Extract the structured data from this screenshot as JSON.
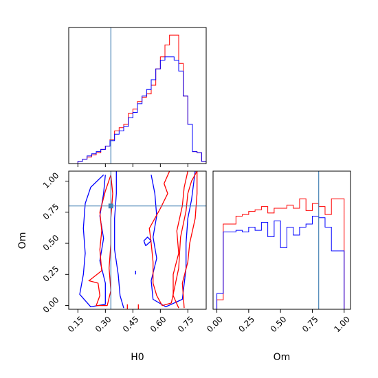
{
  "chart_data": [
    {
      "type": "histogram",
      "panel": "H0-marginal",
      "xlim": [
        0.1,
        0.85
      ],
      "bins": [
        0.1,
        0.125,
        0.15,
        0.175,
        0.2,
        0.225,
        0.25,
        0.275,
        0.3,
        0.325,
        0.35,
        0.375,
        0.4,
        0.425,
        0.45,
        0.475,
        0.5,
        0.525,
        0.55,
        0.575,
        0.6,
        0.625,
        0.65,
        0.675,
        0.7,
        0.725,
        0.75,
        0.775,
        0.8,
        0.825,
        0.85
      ],
      "series": [
        {
          "color": "#ff0000",
          "values": [
            0,
            0,
            2,
            4,
            6,
            8,
            10,
            13,
            16,
            22,
            30,
            33,
            36,
            46,
            50,
            57,
            61,
            64,
            72,
            87,
            98,
            109,
            118,
            118,
            92,
            62,
            36,
            11,
            10,
            2
          ]
        },
        {
          "color": "#0000ff",
          "values": [
            0,
            0,
            2,
            4,
            7,
            9,
            11,
            13,
            16,
            21,
            27,
            30,
            34,
            42,
            47,
            55,
            62,
            68,
            77,
            87,
            95,
            98,
            98,
            95,
            85,
            62,
            36,
            11,
            10,
            2
          ]
        }
      ],
      "truth": 0.33,
      "truth_color": "#4682b4"
    },
    {
      "type": "histogram",
      "panel": "Om-marginal",
      "xlim": [
        -0.03,
        1.05
      ],
      "bins": [
        0.0,
        0.05,
        0.1,
        0.15,
        0.2,
        0.25,
        0.3,
        0.35,
        0.4,
        0.45,
        0.5,
        0.55,
        0.6,
        0.65,
        0.7,
        0.75,
        0.8,
        0.85,
        0.9,
        0.95,
        1.0,
        1.05
      ],
      "series": [
        {
          "color": "#ff0000",
          "values": [
            12,
            108,
            108,
            118,
            120,
            124,
            126,
            130,
            122,
            128,
            128,
            132,
            128,
            140,
            125,
            134,
            130,
            120,
            140,
            140,
            0,
            0
          ]
        },
        {
          "color": "#0000ff",
          "values": [
            20,
            98,
            98,
            100,
            98,
            104,
            100,
            110,
            92,
            112,
            78,
            104,
            94,
            104,
            108,
            118,
            116,
            104,
            74,
            74,
            0,
            0
          ]
        }
      ],
      "truth": 0.8,
      "truth_color": "#4682b4"
    },
    {
      "type": "contour",
      "panel": "H0-Om-joint",
      "xlabel": "H0",
      "ylabel": "Om",
      "xlim": [
        0.1,
        0.85
      ],
      "ylim": [
        -0.03,
        1.08
      ],
      "xticks": [
        "0.15",
        "0.30",
        "0.45",
        "0.60",
        "0.75"
      ],
      "yticks": [
        "0.00",
        "0.25",
        "0.50",
        "0.75",
        "1.00"
      ],
      "truth": {
        "x": 0.33,
        "y": 0.8
      },
      "truth_color": "#4682b4",
      "series": [
        {
          "color": "#0000ff",
          "contours": [
            [
              [
                0.29,
                1.05
              ],
              [
                0.22,
                0.95
              ],
              [
                0.19,
                0.82
              ],
              [
                0.18,
                0.62
              ],
              [
                0.19,
                0.42
              ],
              [
                0.18,
                0.25
              ],
              [
                0.16,
                0.09
              ],
              [
                0.22,
                -0.01
              ],
              [
                0.3,
                0.01
              ],
              [
                0.3,
                0.18
              ],
              [
                0.27,
                0.36
              ],
              [
                0.29,
                0.54
              ],
              [
                0.27,
                0.72
              ],
              [
                0.29,
                0.9
              ],
              [
                0.3,
                1.05
              ]
            ],
            [
              [
                0.36,
                1.08
              ],
              [
                0.36,
                0.9
              ],
              [
                0.35,
                0.7
              ],
              [
                0.35,
                0.45
              ],
              [
                0.37,
                0.25
              ],
              [
                0.38,
                0.08
              ],
              [
                0.4,
                -0.02
              ]
            ],
            [
              [
                0.55,
                1.05
              ],
              [
                0.57,
                0.9
              ],
              [
                0.58,
                0.72
              ],
              [
                0.56,
                0.55
              ],
              [
                0.58,
                0.38
              ],
              [
                0.55,
                0.2
              ],
              [
                0.56,
                0.05
              ],
              [
                0.63,
                -0.01
              ],
              [
                0.72,
                0.05
              ],
              [
                0.74,
                0.3
              ],
              [
                0.74,
                0.5
              ],
              [
                0.75,
                0.7
              ],
              [
                0.77,
                0.85
              ],
              [
                0.79,
                1.08
              ]
            ],
            [
              [
                0.52,
                0.48
              ],
              [
                0.51,
                0.52
              ],
              [
                0.53,
                0.55
              ],
              [
                0.55,
                0.52
              ],
              [
                0.52,
                0.48
              ]
            ],
            [
              [
                0.465,
                0.25
              ],
              [
                0.465,
                0.28
              ]
            ]
          ]
        },
        {
          "color": "#ff0000",
          "contours": [
            [
              [
                0.33,
                1.05
              ],
              [
                0.3,
                0.92
              ],
              [
                0.27,
                0.75
              ],
              [
                0.28,
                0.6
              ],
              [
                0.27,
                0.45
              ],
              [
                0.28,
                0.28
              ],
              [
                0.22,
                0.21
              ],
              [
                0.21,
                0.2
              ],
              [
                0.26,
                0.18
              ],
              [
                0.27,
                0.08
              ],
              [
                0.25,
                0.0
              ],
              [
                0.31,
                0.0
              ],
              [
                0.33,
                0.12
              ],
              [
                0.32,
                0.3
              ],
              [
                0.33,
                0.5
              ],
              [
                0.33,
                0.7
              ],
              [
                0.34,
                0.9
              ],
              [
                0.33,
                1.05
              ]
            ],
            [
              [
                0.65,
                1.08
              ],
              [
                0.62,
                0.98
              ],
              [
                0.64,
                0.9
              ],
              [
                0.6,
                0.78
              ],
              [
                0.57,
                0.7
              ],
              [
                0.54,
                0.62
              ],
              [
                0.55,
                0.5
              ],
              [
                0.56,
                0.35
              ],
              [
                0.56,
                0.18
              ],
              [
                0.58,
                0.08
              ],
              [
                0.61,
                0.0
              ],
              [
                0.66,
                0.02
              ],
              [
                0.7,
                0.3
              ],
              [
                0.71,
                0.55
              ],
              [
                0.74,
                0.76
              ],
              [
                0.75,
                0.9
              ],
              [
                0.77,
                1.0
              ],
              [
                0.8,
                1.08
              ]
            ],
            [
              [
                0.75,
                1.08
              ],
              [
                0.73,
                0.95
              ],
              [
                0.72,
                0.8
              ],
              [
                0.69,
                0.6
              ],
              [
                0.7,
                0.42
              ],
              [
                0.67,
                0.25
              ],
              [
                0.67,
                0.08
              ],
              [
                0.7,
                -0.02
              ]
            ],
            [
              [
                0.8,
                1.08
              ],
              [
                0.8,
                0.9
              ],
              [
                0.79,
                0.7
              ],
              [
                0.76,
                0.5
              ],
              [
                0.75,
                0.35
              ],
              [
                0.72,
                0.18
              ],
              [
                0.73,
                -0.02
              ]
            ],
            [
              [
                0.42,
                0.01
              ],
              [
                0.42,
                -0.03
              ]
            ],
            [
              [
                0.48,
                0.01
              ],
              [
                0.48,
                -0.03
              ]
            ]
          ]
        }
      ]
    }
  ],
  "axes": {
    "h0": {
      "xlabel": "H0",
      "xticks": [
        "0.15",
        "0.30",
        "0.45",
        "0.60",
        "0.75"
      ]
    },
    "om": {
      "xlabel": "Om",
      "xticks": [
        "0.00",
        "0.25",
        "0.50",
        "0.75",
        "1.00"
      ]
    }
  }
}
